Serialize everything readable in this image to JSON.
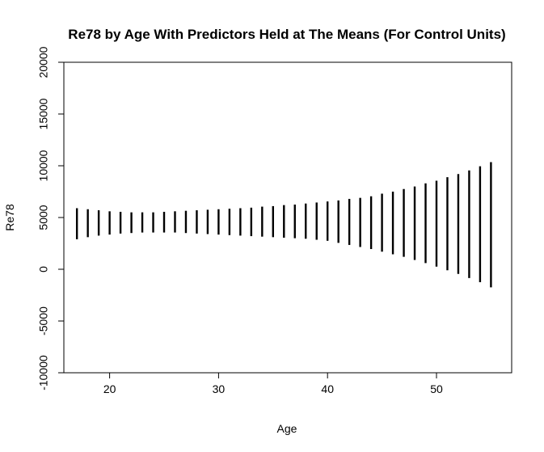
{
  "chart_data": {
    "type": "range-bar",
    "title": "Re78 by Age With Predictors Held at The Means (For Control Units)",
    "xlabel": "Age",
    "ylabel": "Re78",
    "xlim": [
      15.8,
      56.9
    ],
    "ylim": [
      -10000,
      20000
    ],
    "xticks": [
      20,
      30,
      40,
      50
    ],
    "yticks": [
      -10000,
      -5000,
      0,
      5000,
      10000,
      15000,
      20000
    ],
    "x": [
      17,
      18,
      19,
      20,
      21,
      22,
      23,
      24,
      25,
      26,
      27,
      28,
      29,
      30,
      31,
      32,
      33,
      34,
      35,
      36,
      37,
      38,
      39,
      40,
      41,
      42,
      43,
      44,
      45,
      46,
      47,
      48,
      49,
      50,
      51,
      52,
      53,
      54,
      55
    ],
    "lower": [
      2900,
      3100,
      3250,
      3350,
      3450,
      3500,
      3550,
      3550,
      3550,
      3550,
      3500,
      3450,
      3400,
      3350,
      3300,
      3250,
      3200,
      3150,
      3100,
      3050,
      3000,
      2950,
      2850,
      2750,
      2550,
      2350,
      2150,
      1950,
      1700,
      1450,
      1200,
      900,
      600,
      250,
      -100,
      -450,
      -850,
      -1250,
      -1750
    ],
    "upper": [
      5900,
      5800,
      5700,
      5600,
      5550,
      5500,
      5500,
      5500,
      5550,
      5600,
      5650,
      5700,
      5750,
      5800,
      5850,
      5900,
      5950,
      6050,
      6100,
      6200,
      6250,
      6350,
      6450,
      6550,
      6650,
      6800,
      6900,
      7050,
      7300,
      7500,
      7750,
      8000,
      8300,
      8550,
      8900,
      9200,
      9550,
      9950,
      10350
    ]
  }
}
